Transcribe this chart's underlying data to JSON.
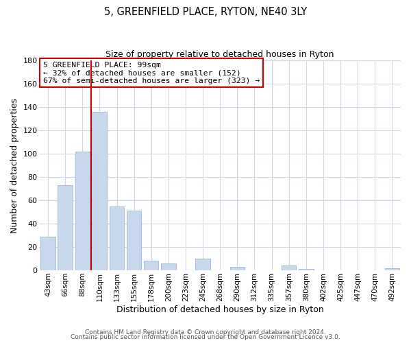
{
  "title": "5, GREENFIELD PLACE, RYTON, NE40 3LY",
  "subtitle": "Size of property relative to detached houses in Ryton",
  "xlabel": "Distribution of detached houses by size in Ryton",
  "ylabel": "Number of detached properties",
  "bar_labels": [
    "43sqm",
    "66sqm",
    "88sqm",
    "110sqm",
    "133sqm",
    "155sqm",
    "178sqm",
    "200sqm",
    "223sqm",
    "245sqm",
    "268sqm",
    "290sqm",
    "312sqm",
    "335sqm",
    "357sqm",
    "380sqm",
    "402sqm",
    "425sqm",
    "447sqm",
    "470sqm",
    "492sqm"
  ],
  "bar_values": [
    29,
    73,
    102,
    136,
    55,
    51,
    8,
    6,
    0,
    10,
    0,
    3,
    0,
    0,
    4,
    1,
    0,
    0,
    0,
    0,
    2
  ],
  "bar_color": "#c8d8ed",
  "bar_edge_color": "#aabdd8",
  "vline_color": "#cc0000",
  "vline_position": 2.5,
  "annotation_box_title": "5 GREENFIELD PLACE: 99sqm",
  "annotation_line1": "← 32% of detached houses are smaller (152)",
  "annotation_line2": "67% of semi-detached houses are larger (323) →",
  "annotation_box_edgecolor": "#cc0000",
  "ylim": [
    0,
    180
  ],
  "yticks": [
    0,
    20,
    40,
    60,
    80,
    100,
    120,
    140,
    160,
    180
  ],
  "footer1": "Contains HM Land Registry data © Crown copyright and database right 2024.",
  "footer2": "Contains public sector information licensed under the Open Government Licence v3.0.",
  "background_color": "#ffffff",
  "grid_color": "#cdd8e8"
}
